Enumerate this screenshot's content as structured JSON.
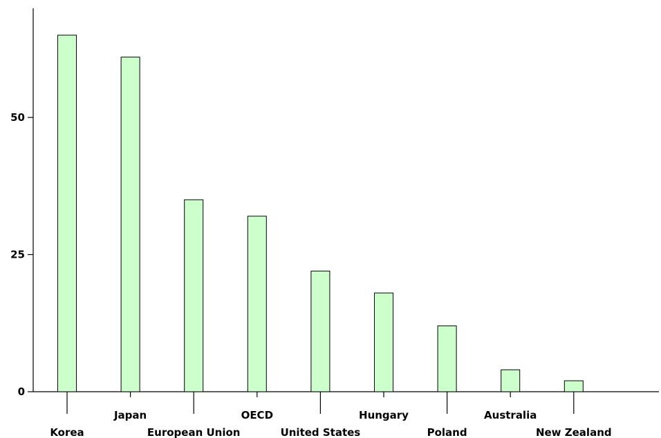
{
  "chart_data": {
    "type": "bar",
    "categories": [
      "Korea",
      "Japan",
      "European Union",
      "OECD",
      "United States",
      "Hungary",
      "Poland",
      "Australia",
      "New Zealand"
    ],
    "values": [
      65,
      61,
      35,
      32,
      22,
      18,
      12,
      4,
      2
    ],
    "title": "",
    "xlabel": "",
    "ylabel": "",
    "ylim": [
      0,
      70
    ],
    "yticks": [
      0,
      25,
      50
    ],
    "ytick_labels": [
      "0",
      "25",
      "50"
    ],
    "grid": false,
    "bar_color": "#ccffcc",
    "bar_edge_color": "#000000"
  }
}
